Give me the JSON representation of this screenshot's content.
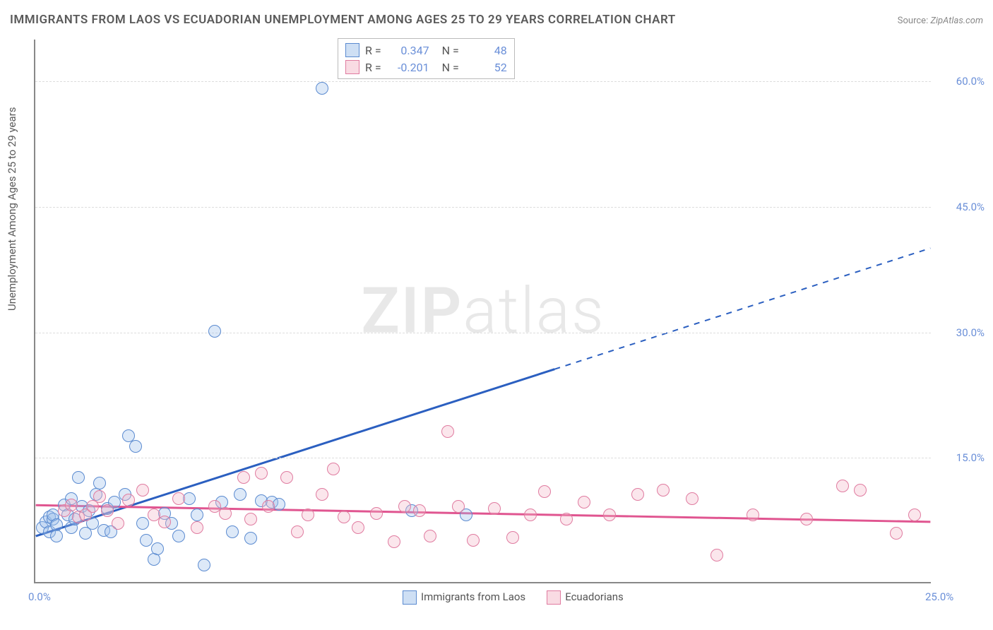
{
  "title": "IMMIGRANTS FROM LAOS VS ECUADORIAN UNEMPLOYMENT AMONG AGES 25 TO 29 YEARS CORRELATION CHART",
  "source_label": "Source:",
  "source_value": "ZipAtlas.com",
  "y_axis_label": "Unemployment Among Ages 25 to 29 years",
  "watermark_bold": "ZIP",
  "watermark_light": "atlas",
  "chart": {
    "type": "scatter",
    "background_color": "#ffffff",
    "grid_color": "#dddddd",
    "axis_color": "#888888",
    "tick_color": "#6a8fd8",
    "xlim": [
      0,
      25
    ],
    "ylim": [
      0,
      65
    ],
    "x_ticks": [
      {
        "value": 0,
        "label": "0.0%"
      },
      {
        "value": 25,
        "label": "25.0%"
      }
    ],
    "y_ticks": [
      {
        "value": 15,
        "label": "15.0%"
      },
      {
        "value": 30,
        "label": "30.0%"
      },
      {
        "value": 45,
        "label": "45.0%"
      },
      {
        "value": 60,
        "label": "60.0%"
      }
    ],
    "marker_radius": 9,
    "marker_stroke_width": 1.5,
    "marker_fill_opacity": 0.35,
    "series": [
      {
        "name": "Immigrants from Laos",
        "label": "Immigrants from Laos",
        "fill_color": "#9ec0ea",
        "stroke_color": "#5a8ad0",
        "trend_color": "#2b5fc0",
        "trend_width": 3,
        "R": "0.347",
        "N": "48",
        "trend": {
          "x1": 0,
          "y1": 5.5,
          "x2": 14.5,
          "y2": 25.5,
          "dash_x2": 25,
          "dash_y2": 40
        },
        "points": [
          [
            0.2,
            6.5
          ],
          [
            0.3,
            7.2
          ],
          [
            0.4,
            6.0
          ],
          [
            0.4,
            7.8
          ],
          [
            0.5,
            7.5
          ],
          [
            0.5,
            8.0
          ],
          [
            0.6,
            6.8
          ],
          [
            0.6,
            5.5
          ],
          [
            0.8,
            9.2
          ],
          [
            0.9,
            8.0
          ],
          [
            1.0,
            6.5
          ],
          [
            1.0,
            10.0
          ],
          [
            1.1,
            7.5
          ],
          [
            1.2,
            12.5
          ],
          [
            1.3,
            9.0
          ],
          [
            1.4,
            5.8
          ],
          [
            1.5,
            8.5
          ],
          [
            1.6,
            7.0
          ],
          [
            1.7,
            10.5
          ],
          [
            1.8,
            11.8
          ],
          [
            1.9,
            6.2
          ],
          [
            2.0,
            8.8
          ],
          [
            2.1,
            6.0
          ],
          [
            2.2,
            9.5
          ],
          [
            2.5,
            10.5
          ],
          [
            2.6,
            17.5
          ],
          [
            2.8,
            16.2
          ],
          [
            3.0,
            7.0
          ],
          [
            3.1,
            5.0
          ],
          [
            3.3,
            2.7
          ],
          [
            3.4,
            4.0
          ],
          [
            3.6,
            8.2
          ],
          [
            3.8,
            7.0
          ],
          [
            4.0,
            5.5
          ],
          [
            4.3,
            10.0
          ],
          [
            4.5,
            8.0
          ],
          [
            4.7,
            2.0
          ],
          [
            5.0,
            30.0
          ],
          [
            5.2,
            9.5
          ],
          [
            5.5,
            6.0
          ],
          [
            5.7,
            10.5
          ],
          [
            6.0,
            5.2
          ],
          [
            6.3,
            9.7
          ],
          [
            6.6,
            9.5
          ],
          [
            6.8,
            9.3
          ],
          [
            8.0,
            59.0
          ],
          [
            12.0,
            8.0
          ],
          [
            10.5,
            8.5
          ]
        ]
      },
      {
        "name": "Ecuadorians",
        "label": "Ecuadorians",
        "fill_color": "#f3b8c8",
        "stroke_color": "#e07ba0",
        "trend_color": "#e05590",
        "trend_width": 3,
        "R": "-0.201",
        "N": "52",
        "trend": {
          "x1": 0,
          "y1": 9.2,
          "x2": 25,
          "y2": 7.2
        },
        "points": [
          [
            0.8,
            8.5
          ],
          [
            1.0,
            9.2
          ],
          [
            1.2,
            7.8
          ],
          [
            1.4,
            8.0
          ],
          [
            1.6,
            9.0
          ],
          [
            1.8,
            10.2
          ],
          [
            2.0,
            8.5
          ],
          [
            2.3,
            7.0
          ],
          [
            2.6,
            9.8
          ],
          [
            3.0,
            11.0
          ],
          [
            3.3,
            8.0
          ],
          [
            3.6,
            7.2
          ],
          [
            4.0,
            10.0
          ],
          [
            4.5,
            6.5
          ],
          [
            5.0,
            9.0
          ],
          [
            5.3,
            8.2
          ],
          [
            5.8,
            12.5
          ],
          [
            6.0,
            7.5
          ],
          [
            6.3,
            13.0
          ],
          [
            6.5,
            9.0
          ],
          [
            7.0,
            12.5
          ],
          [
            7.3,
            6.0
          ],
          [
            7.6,
            8.0
          ],
          [
            8.0,
            10.5
          ],
          [
            8.3,
            13.5
          ],
          [
            8.6,
            7.8
          ],
          [
            9.0,
            6.5
          ],
          [
            9.5,
            8.2
          ],
          [
            10.0,
            4.8
          ],
          [
            10.3,
            9.0
          ],
          [
            10.7,
            8.5
          ],
          [
            11.0,
            5.5
          ],
          [
            11.5,
            18.0
          ],
          [
            11.8,
            9.0
          ],
          [
            12.2,
            5.0
          ],
          [
            12.8,
            8.8
          ],
          [
            13.3,
            5.3
          ],
          [
            13.8,
            8.0
          ],
          [
            14.2,
            10.8
          ],
          [
            14.8,
            7.5
          ],
          [
            15.3,
            9.5
          ],
          [
            16.0,
            8.0
          ],
          [
            16.8,
            10.5
          ],
          [
            17.5,
            11.0
          ],
          [
            18.3,
            10.0
          ],
          [
            19.0,
            3.2
          ],
          [
            20.0,
            8.0
          ],
          [
            21.5,
            7.5
          ],
          [
            22.5,
            11.5
          ],
          [
            23.0,
            11.0
          ],
          [
            24.0,
            5.8
          ],
          [
            24.5,
            8.0
          ]
        ]
      }
    ]
  },
  "stats_labels": {
    "R": "R  =",
    "N": "N  ="
  }
}
